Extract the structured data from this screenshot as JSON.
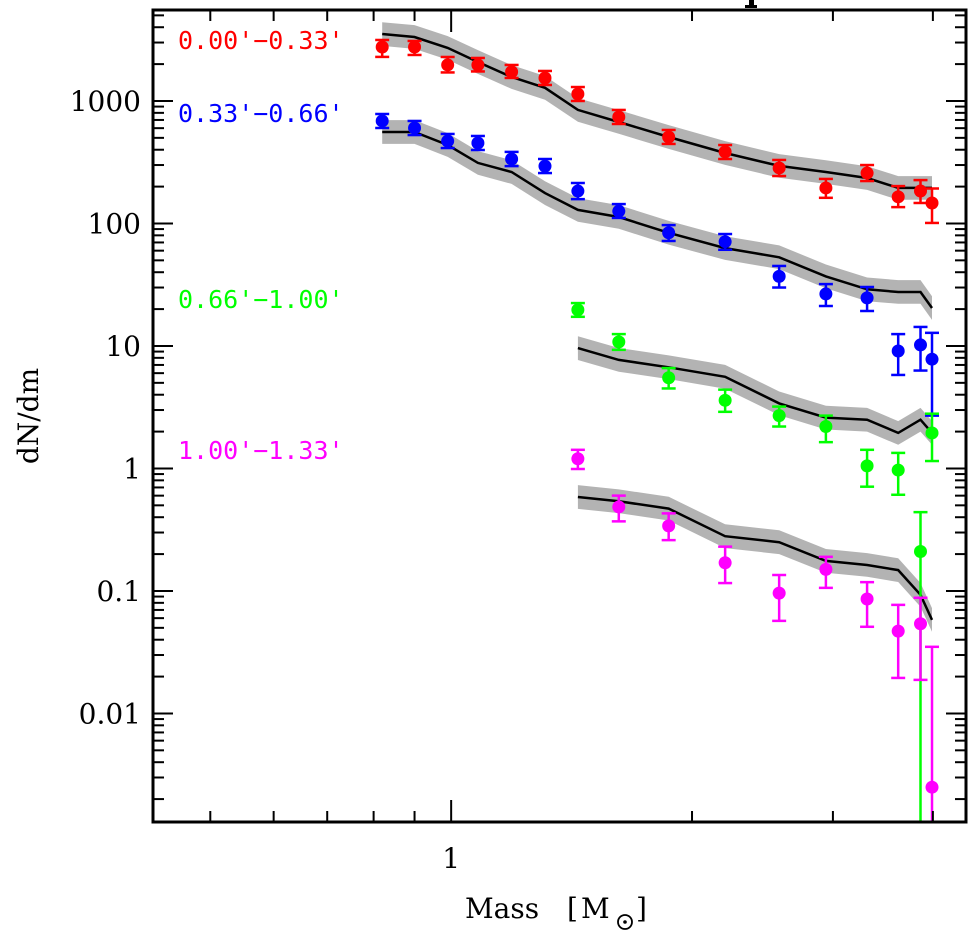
{
  "chart_data": {
    "type": "scatter",
    "title": "",
    "xlabel": "Mass [M⊙]",
    "xlabel_main": "Mass",
    "xlabel_unit": "M",
    "ylabel": "dN/dm",
    "xscale": "log",
    "yscale": "log",
    "xlim": [
      0.424,
      4.4
    ],
    "ylim": [
      0.0013,
      5530
    ],
    "x_ticks_major": [
      {
        "value": 1,
        "label": "1"
      }
    ],
    "x_ticks_minor": [
      0.5,
      0.6,
      0.7,
      0.8,
      0.9,
      2,
      3,
      4
    ],
    "y_ticks_major": [
      {
        "value": 1000,
        "label": "1000"
      },
      {
        "value": 100,
        "label": "100"
      },
      {
        "value": 10,
        "label": "10"
      },
      {
        "value": 1,
        "label": "1"
      },
      {
        "value": 0.1,
        "label": "0.1"
      },
      {
        "value": 0.01,
        "label": "0.01"
      }
    ],
    "grid": false,
    "legend": "left, inline colored labels",
    "series": [
      {
        "name": "0.00'−0.33'",
        "color": "#ff0000",
        "x": [
          0.82,
          0.9,
          0.99,
          1.08,
          1.19,
          1.31,
          1.44,
          1.62,
          1.87,
          2.2,
          2.57,
          2.94,
          3.31,
          3.62,
          3.86,
          3.99
        ],
        "y": [
          2760,
          2760,
          1970,
          1970,
          1730,
          1540,
          1140,
          740,
          508,
          384,
          284,
          195,
          258,
          165,
          184,
          147
        ],
        "y_err_low": [
          2290,
          2375,
          1710,
          1742,
          1542,
          1351,
          1000,
          649,
          446,
          336,
          244,
          162,
          222,
          136,
          147,
          101
        ],
        "y_err_high": [
          3148,
          3090,
          2287,
          2245,
          1968,
          1758,
          1300,
          845,
          580,
          437,
          330,
          231,
          300,
          202,
          226,
          193
        ],
        "model_x": [
          0.82,
          0.9,
          0.99,
          1.08,
          1.19,
          1.31,
          1.44,
          1.62,
          1.87,
          2.2,
          2.57,
          2.94,
          3.31,
          3.62,
          3.86,
          3.99
        ],
        "model_y": [
          3520,
          3330,
          2710,
          2080,
          1570,
          1280,
          845,
          674,
          508,
          376,
          295,
          263,
          235,
          195,
          195,
          195
        ]
      },
      {
        "name": "0.33'−0.66'",
        "color": "#0000ff",
        "x": [
          0.82,
          0.9,
          0.99,
          1.08,
          1.19,
          1.31,
          1.44,
          1.62,
          1.87,
          2.2,
          2.57,
          2.94,
          3.31,
          3.62,
          3.86,
          3.99
        ],
        "y": [
          687,
          602,
          471,
          454,
          336,
          294,
          184,
          126,
          84,
          71,
          37,
          26.6,
          24.7,
          9.1,
          10.2,
          7.8
        ],
        "y_err_low": [
          602,
          527,
          413,
          398,
          294,
          258,
          158,
          111,
          72,
          61,
          30,
          21.2,
          19.3,
          5.8,
          6.3,
          2.7
        ],
        "y_err_high": [
          783,
          687,
          538,
          518,
          384,
          336,
          214,
          144,
          97,
          82,
          45,
          32,
          30.3,
          12.5,
          14.3,
          12.8
        ],
        "model_x": [
          0.82,
          0.9,
          0.99,
          1.08,
          1.19,
          1.31,
          1.44,
          1.62,
          1.87,
          2.2,
          2.57,
          2.94,
          3.31,
          3.62,
          3.86,
          3.99
        ],
        "model_y": [
          558,
          558,
          437,
          312,
          263,
          177,
          129,
          113,
          84,
          63,
          53,
          37,
          29,
          27.6,
          27.6,
          20.4
        ]
      },
      {
        "name": "0.66'−1.00'",
        "color": "#00ff00",
        "x": [
          1.44,
          1.62,
          1.87,
          2.2,
          2.57,
          2.94,
          3.31,
          3.62,
          3.86,
          3.99
        ],
        "y": [
          19.7,
          10.8,
          5.5,
          3.6,
          2.7,
          2.2,
          1.05,
          0.97,
          0.21,
          1.95
        ],
        "y_err_low": [
          17.3,
          9.3,
          4.5,
          2.9,
          2.2,
          1.64,
          0.71,
          0.61,
          0.0001,
          1.15
        ],
        "y_err_high": [
          22.4,
          12.5,
          6.6,
          4.4,
          3.2,
          2.7,
          1.42,
          1.34,
          0.44,
          2.8
        ],
        "model_x": [
          1.44,
          1.62,
          1.87,
          2.2,
          2.57,
          2.94,
          3.31,
          3.62,
          3.86,
          3.99
        ],
        "model_y": [
          9.6,
          7.7,
          6.7,
          5.6,
          3.4,
          2.6,
          2.5,
          1.95,
          2.5,
          1.95
        ]
      },
      {
        "name": "1.00'−1.33'",
        "color": "#ff00ff",
        "x": [
          1.44,
          1.62,
          1.87,
          2.2,
          2.57,
          2.94,
          3.31,
          3.62,
          3.86,
          3.99
        ],
        "y": [
          1.2,
          0.485,
          0.34,
          0.17,
          0.096,
          0.15,
          0.086,
          0.047,
          0.054,
          0.0025
        ],
        "y_err_low": [
          0.99,
          0.37,
          0.26,
          0.116,
          0.057,
          0.106,
          0.051,
          0.0195,
          0.0188,
          0.0001
        ],
        "y_err_high": [
          1.42,
          0.6,
          0.43,
          0.23,
          0.135,
          0.19,
          0.118,
          0.077,
          0.088,
          0.035
        ],
        "model_x": [
          1.44,
          1.62,
          1.87,
          2.2,
          2.57,
          2.94,
          3.31,
          3.62,
          3.86,
          3.99
        ],
        "model_y": [
          0.585,
          0.54,
          0.47,
          0.28,
          0.25,
          0.176,
          0.163,
          0.148,
          0.093,
          0.058
        ]
      }
    ],
    "model_band_factor": 1.25,
    "model_line_color": "#000000",
    "model_band_color": "#b3b3b3",
    "label_positions": [
      "top-left",
      "upper-left",
      "middle-left",
      "lower-left"
    ]
  }
}
